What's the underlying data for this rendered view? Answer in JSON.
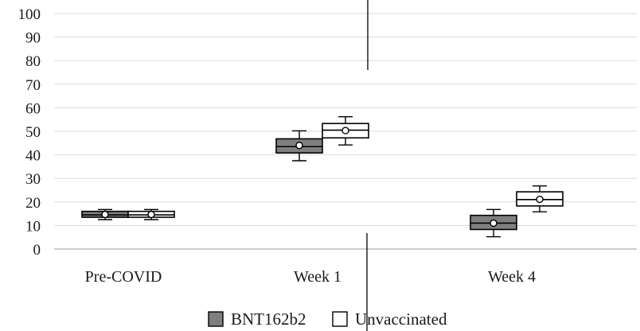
{
  "chart_data": {
    "type": "box",
    "categories": [
      "Pre-COVID",
      "Week 1",
      "Week 4"
    ],
    "ylim": [
      0,
      100
    ],
    "yticks": [
      0,
      10,
      20,
      30,
      40,
      50,
      60,
      70,
      80,
      90,
      100
    ],
    "grid": true,
    "legend_position": "bottom",
    "series": [
      {
        "name": "BNT162b2",
        "color": "#7f7f7f",
        "boxes": [
          {
            "min": 12.5,
            "q1": 13.5,
            "median": 14.5,
            "q3": 16.0,
            "max": 16.8,
            "mean": 14.7
          },
          {
            "min": 37.5,
            "q1": 40.8,
            "median": 43.5,
            "q3": 46.8,
            "max": 50.2,
            "mean": 44.0
          },
          {
            "min": 5.2,
            "q1": 8.3,
            "median": 11.0,
            "q3": 14.3,
            "max": 16.8,
            "mean": 11.0
          }
        ]
      },
      {
        "name": "Unvaccinated",
        "color": "#ffffff",
        "boxes": [
          {
            "min": 12.5,
            "q1": 13.5,
            "median": 14.5,
            "q3": 16.0,
            "max": 16.8,
            "mean": 14.7
          },
          {
            "min": 44.2,
            "q1": 47.2,
            "median": 50.5,
            "q3": 53.3,
            "max": 56.2,
            "mean": 50.3
          },
          {
            "min": 15.8,
            "q1": 18.3,
            "median": 21.0,
            "q3": 24.3,
            "max": 26.8,
            "mean": 21.1
          }
        ]
      }
    ]
  }
}
